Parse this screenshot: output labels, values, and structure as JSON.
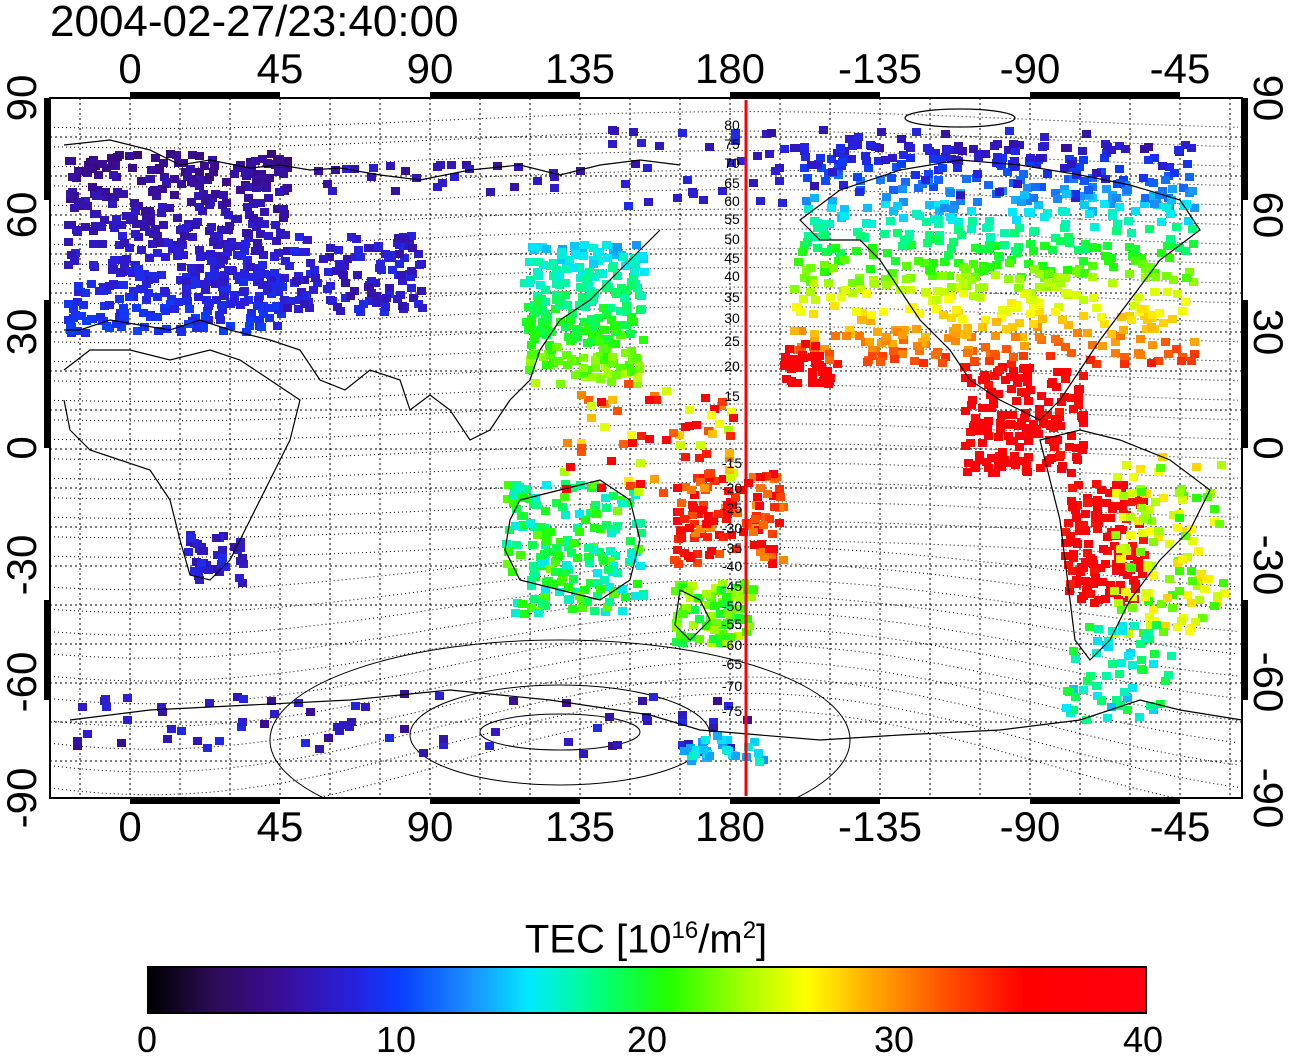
{
  "title": "2004-02-27/23:40:00",
  "axes": {
    "top_ticks": [
      "0",
      "45",
      "90",
      "135",
      "180",
      "-135",
      "-90",
      "-45"
    ],
    "bottom_ticks": [
      "0",
      "45",
      "90",
      "135",
      "180",
      "-135",
      "-90",
      "-45"
    ],
    "left_ticks": [
      "90",
      "60",
      "30",
      "0",
      "-30",
      "-60",
      "-90"
    ],
    "right_ticks": [
      "90",
      "60",
      "30",
      "0",
      "-30",
      "-60",
      "-90"
    ]
  },
  "contour_labels": [
    "80",
    "75",
    "70",
    "65",
    "60",
    "55",
    "50",
    "45",
    "40",
    "35",
    "30",
    "25",
    "20",
    "15",
    "-15",
    "-20",
    "-25",
    "-30",
    "-35",
    "-40",
    "-45",
    "-50",
    "-55",
    "-60",
    "-65",
    "-70",
    "-75"
  ],
  "colorbar": {
    "label_prefix": "TEC  [10",
    "label_exp": "16",
    "label_mid": "/m",
    "label_exp2": "2",
    "label_suffix": "]",
    "ticks": [
      "0",
      "10",
      "20",
      "30",
      "40"
    ]
  },
  "colors": {
    "terminator": "#ff0000"
  }
}
